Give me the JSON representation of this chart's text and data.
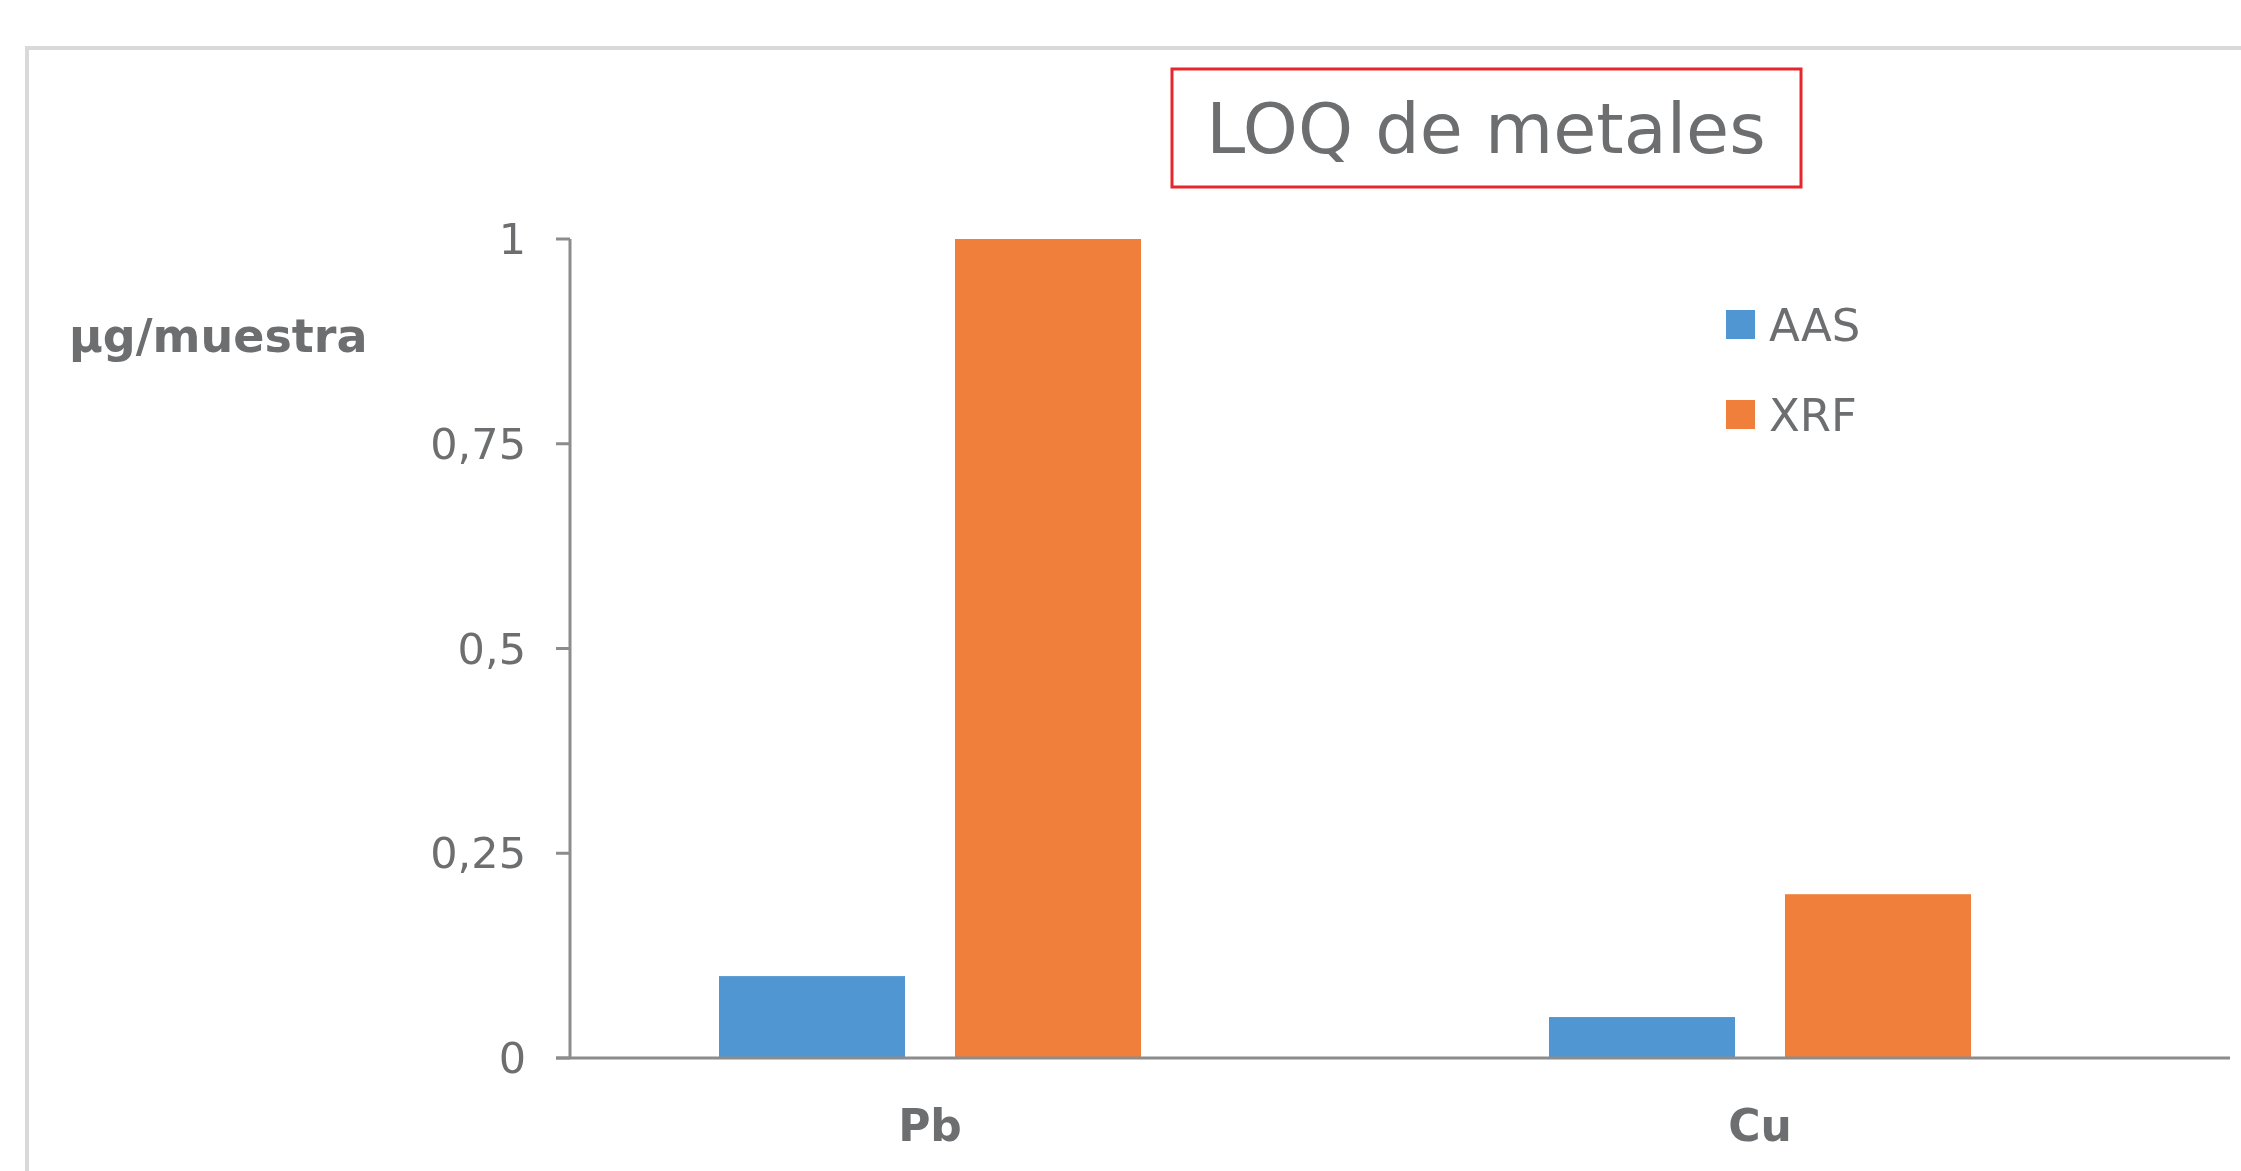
{
  "chart_data": {
    "type": "bar",
    "title": "LOQ de metales",
    "ylabel": "µg/muestra",
    "categories": [
      "Pb",
      "Cu"
    ],
    "series": [
      {
        "name": "AAS",
        "color": "#4f96d2",
        "values": [
          0.1,
          0.05
        ]
      },
      {
        "name": "XRF",
        "color": "#ef7f3a",
        "values": [
          1,
          0.2
        ]
      }
    ],
    "ylim": [
      0,
      1
    ],
    "yticks": [
      0,
      {
        "value": 0.25,
        "label": "0,25"
      },
      {
        "value": 0.5,
        "label": "0,5"
      },
      {
        "value": 0.75,
        "label": "0,75"
      },
      1
    ],
    "grid": false,
    "legend": "top right"
  }
}
